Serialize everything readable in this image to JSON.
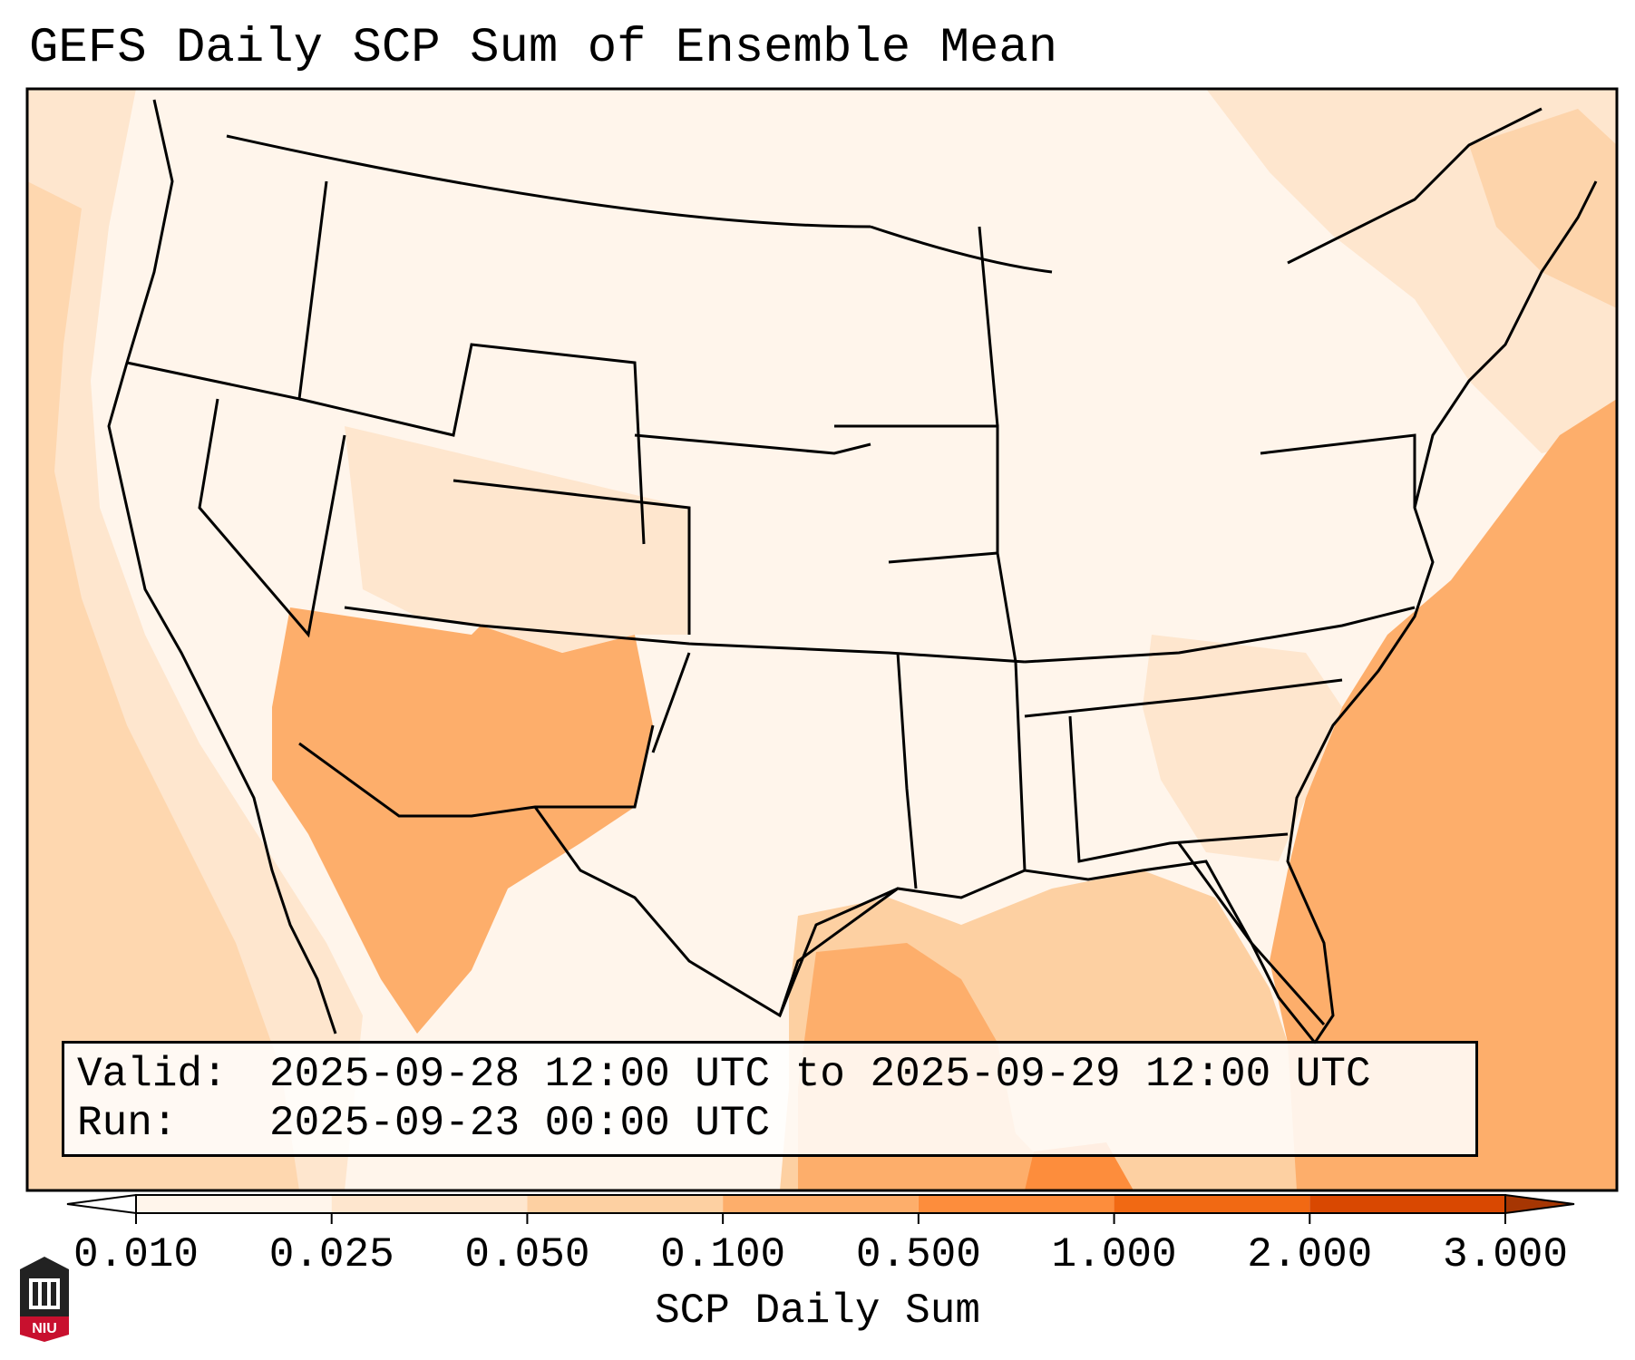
{
  "title": "GEFS Daily SCP Sum of Ensemble Mean",
  "info": {
    "valid_label": "Valid:",
    "valid_value": "2025-09-28 12:00 UTC to 2025-09-29 12:00 UTC",
    "run_label": "Run:",
    "run_value": "2025-09-23 00:00 UTC"
  },
  "colorbar": {
    "label": "SCP Daily Sum",
    "ticks": [
      "0.010",
      "0.025",
      "0.050",
      "0.100",
      "0.500",
      "1.000",
      "2.000",
      "3.000"
    ],
    "colors": [
      "#fff5eb",
      "#fee6ce",
      "#fdd0a2",
      "#fdae6b",
      "#fd8d3c",
      "#f16913",
      "#d94801",
      "#a63603"
    ],
    "under_color": "#ffffff",
    "over_color": "#a63603"
  },
  "logo": {
    "text": "NIU",
    "color": "#c8102e"
  }
}
